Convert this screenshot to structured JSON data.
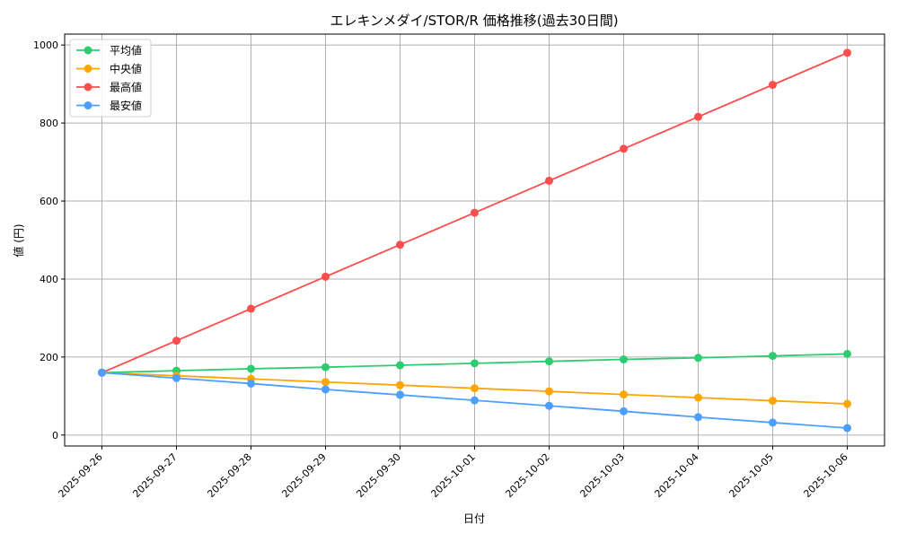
{
  "chart_data": {
    "type": "line",
    "title": "エレキンメダイ/STOR/R 価格推移(過去30日間)",
    "xlabel": "日付",
    "ylabel": "値 (円)",
    "categories": [
      "2025-09-26",
      "2025-09-27",
      "2025-09-28",
      "2025-09-29",
      "2025-09-30",
      "2025-10-01",
      "2025-10-02",
      "2025-10-03",
      "2025-10-04",
      "2025-10-05",
      "2025-10-06"
    ],
    "ylim": [
      -28,
      1028
    ],
    "yticks": [
      0,
      200,
      400,
      600,
      800,
      1000
    ],
    "grid": true,
    "legend_position": "top-left",
    "series": [
      {
        "name": "平均値",
        "color": "#2ecc71",
        "values": [
          160,
          165,
          170,
          174,
          179,
          184,
          189,
          194,
          198,
          203,
          208
        ]
      },
      {
        "name": "中央値",
        "color": "#ffa500",
        "values": [
          160,
          152,
          144,
          136,
          128,
          120,
          112,
          104,
          96,
          88,
          80
        ]
      },
      {
        "name": "最高値",
        "color": "#ff4d4d",
        "values": [
          160,
          242,
          324,
          406,
          488,
          570,
          652,
          734,
          816,
          898,
          980
        ]
      },
      {
        "name": "最安値",
        "color": "#4d9fff",
        "values": [
          160,
          146,
          132,
          117,
          103,
          89,
          75,
          61,
          46,
          32,
          18
        ]
      }
    ]
  }
}
